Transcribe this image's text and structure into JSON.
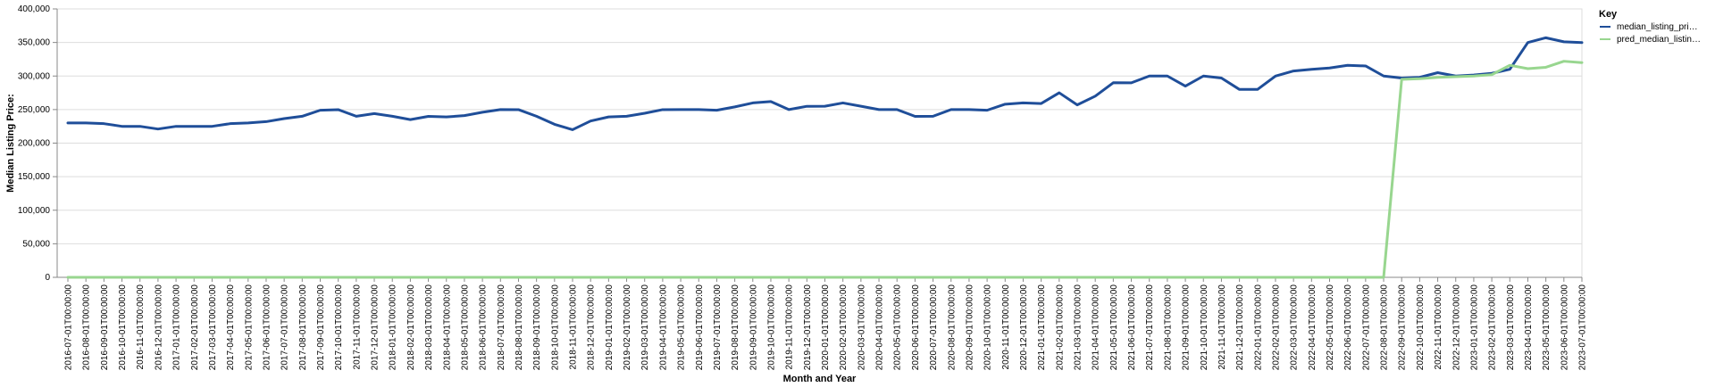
{
  "chart_data": {
    "type": "line",
    "xlabel": "Month and Year",
    "ylabel": "Median Listing Price:",
    "ylim": [
      0,
      400000
    ],
    "yticks": [
      "0",
      "50,000",
      "100,000",
      "150,000",
      "200,000",
      "250,000",
      "300,000",
      "350,000",
      "400,000"
    ],
    "grid": true,
    "legend": {
      "title": "Key",
      "placement": "top-right"
    },
    "x": [
      "2016-07-01T00:00:00",
      "2016-08-01T00:00:00",
      "2016-09-01T00:00:00",
      "2016-10-01T00:00:00",
      "2016-11-01T00:00:00",
      "2016-12-01T00:00:00",
      "2017-01-01T00:00:00",
      "2017-02-01T00:00:00",
      "2017-03-01T00:00:00",
      "2017-04-01T00:00:00",
      "2017-05-01T00:00:00",
      "2017-06-01T00:00:00",
      "2017-07-01T00:00:00",
      "2017-08-01T00:00:00",
      "2017-09-01T00:00:00",
      "2017-10-01T00:00:00",
      "2017-11-01T00:00:00",
      "2017-12-01T00:00:00",
      "2018-01-01T00:00:00",
      "2018-02-01T00:00:00",
      "2018-03-01T00:00:00",
      "2018-04-01T00:00:00",
      "2018-05-01T00:00:00",
      "2018-06-01T00:00:00",
      "2018-07-01T00:00:00",
      "2018-08-01T00:00:00",
      "2018-09-01T00:00:00",
      "2018-10-01T00:00:00",
      "2018-11-01T00:00:00",
      "2018-12-01T00:00:00",
      "2019-01-01T00:00:00",
      "2019-02-01T00:00:00",
      "2019-03-01T00:00:00",
      "2019-04-01T00:00:00",
      "2019-05-01T00:00:00",
      "2019-06-01T00:00:00",
      "2019-07-01T00:00:00",
      "2019-08-01T00:00:00",
      "2019-09-01T00:00:00",
      "2019-10-01T00:00:00",
      "2019-11-01T00:00:00",
      "2019-12-01T00:00:00",
      "2020-01-01T00:00:00",
      "2020-02-01T00:00:00",
      "2020-03-01T00:00:00",
      "2020-04-01T00:00:00",
      "2020-05-01T00:00:00",
      "2020-06-01T00:00:00",
      "2020-07-01T00:00:00",
      "2020-08-01T00:00:00",
      "2020-09-01T00:00:00",
      "2020-10-01T00:00:00",
      "2020-11-01T00:00:00",
      "2020-12-01T00:00:00",
      "2021-01-01T00:00:00",
      "2021-02-01T00:00:00",
      "2021-03-01T00:00:00",
      "2021-04-01T00:00:00",
      "2021-05-01T00:00:00",
      "2021-06-01T00:00:00",
      "2021-07-01T00:00:00",
      "2021-08-01T00:00:00",
      "2021-09-01T00:00:00",
      "2021-10-01T00:00:00",
      "2021-11-01T00:00:00",
      "2021-12-01T00:00:00",
      "2022-01-01T00:00:00",
      "2022-02-01T00:00:00",
      "2022-03-01T00:00:00",
      "2022-04-01T00:00:00",
      "2022-05-01T00:00:00",
      "2022-06-01T00:00:00",
      "2022-07-01T00:00:00",
      "2022-08-01T00:00:00",
      "2022-09-01T00:00:00",
      "2022-10-01T00:00:00",
      "2022-11-01T00:00:00",
      "2022-12-01T00:00:00",
      "2023-01-01T00:00:00",
      "2023-02-01T00:00:00",
      "2023-03-01T00:00:00",
      "2023-04-01T00:00:00",
      "2023-05-01T00:00:00",
      "2023-06-01T00:00:00",
      "2023-07-01T00:00:00"
    ],
    "series": [
      {
        "name": "median_listing_pri…",
        "color": "#1f4e99",
        "values": [
          230000,
          230000,
          229000,
          225000,
          225000,
          221000,
          225000,
          225000,
          225000,
          229000,
          230000,
          232000,
          236500,
          240000,
          249000,
          249900,
          240000,
          244000,
          240000,
          235000,
          239900,
          239000,
          241000,
          246000,
          250000,
          249900,
          240000,
          228000,
          220000,
          233000,
          239000,
          240000,
          244500,
          249900,
          250000,
          250000,
          249000,
          254000,
          259900,
          262000,
          250000,
          254900,
          255000,
          259900,
          255000,
          250000,
          250000,
          239900,
          240000,
          250000,
          250000,
          249000,
          258000,
          260000,
          259000,
          275000,
          257000,
          270000,
          290000,
          289900,
          300000,
          300000,
          285000,
          300000,
          297000,
          280000,
          280000,
          299900,
          307500,
          310000,
          312000,
          316000,
          315000,
          300000,
          297000,
          298000,
          305000,
          300000,
          301500,
          304000,
          310000,
          349900,
          357000,
          351000,
          349900
        ]
      },
      {
        "name": "pred_median_listin…",
        "color": "#98d68f",
        "values": [
          0,
          0,
          0,
          0,
          0,
          0,
          0,
          0,
          0,
          0,
          0,
          0,
          0,
          0,
          0,
          0,
          0,
          0,
          0,
          0,
          0,
          0,
          0,
          0,
          0,
          0,
          0,
          0,
          0,
          0,
          0,
          0,
          0,
          0,
          0,
          0,
          0,
          0,
          0,
          0,
          0,
          0,
          0,
          0,
          0,
          0,
          0,
          0,
          0,
          0,
          0,
          0,
          0,
          0,
          0,
          0,
          0,
          0,
          0,
          0,
          0,
          0,
          0,
          0,
          0,
          0,
          0,
          0,
          0,
          0,
          0,
          0,
          0,
          0,
          295000,
          296000,
          298000,
          299000,
          300000,
          302000,
          316000,
          311000,
          313000,
          322000,
          320000
        ]
      }
    ]
  }
}
